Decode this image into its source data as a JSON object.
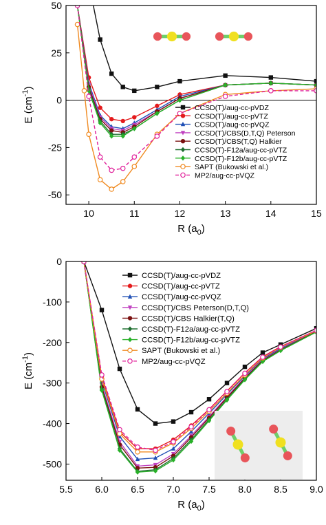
{
  "colors": {
    "background": "#ffffff",
    "axis": "#000000",
    "molecule_green": "#6fcf6a",
    "molecule_red": "#e8555a",
    "molecule_yellow": "#f0e020"
  },
  "chart_data": [
    {
      "type": "line",
      "xlabel": "R (a0)",
      "ylabel": "E (cm-1)",
      "xlim": [
        9.5,
        15
      ],
      "ylim": [
        -55,
        50
      ],
      "xticks": [
        "10",
        "11",
        "12",
        "13",
        "14",
        "15"
      ],
      "yticks": [
        "-50",
        "-25",
        "0",
        "25",
        "50"
      ],
      "xtick_values": [
        10,
        11,
        12,
        13,
        14,
        15
      ],
      "ytick_values": [
        -50,
        -25,
        0,
        25,
        50
      ],
      "zero_line": true,
      "grid": false,
      "legend_position": "center-right",
      "inset": "two linear molecules, side-by-side, top-right",
      "series": [
        {
          "name": "CCSD(T)/aug-cc-pVDZ",
          "color": "#111111",
          "dash": false,
          "marker": "square",
          "x": [
            9.9,
            10.0,
            10.25,
            10.5,
            10.75,
            11.0,
            11.5,
            12.0,
            13.0,
            14.0,
            15.0
          ],
          "y": [
            80,
            62,
            32,
            14,
            7,
            5,
            7,
            10,
            13,
            12,
            10
          ]
        },
        {
          "name": "CCSD(T)/aug-cc-pVTZ",
          "color": "#e41a1c",
          "dash": false,
          "marker": "circle",
          "x": [
            9.75,
            10.0,
            10.25,
            10.5,
            10.75,
            11.0,
            11.5,
            12.0,
            13.0,
            14.0,
            15.0
          ],
          "y": [
            50,
            12,
            -4,
            -10,
            -11,
            -9,
            -3,
            3,
            8,
            9,
            8
          ]
        },
        {
          "name": "CCSD(T)/aug-cc-pVQZ",
          "color": "#1f4fb5",
          "dash": false,
          "marker": "triangle",
          "x": [
            9.75,
            10.0,
            10.25,
            10.5,
            10.75,
            11.0,
            11.5,
            12.0,
            13.0,
            14.0,
            15.0
          ],
          "y": [
            50,
            9,
            -8,
            -14,
            -15,
            -12,
            -5,
            2,
            8,
            9,
            8
          ]
        },
        {
          "name": "CCSD(T)/CBS(D,T,Q) Peterson",
          "color": "#c040c0",
          "dash": false,
          "marker": "triangle-down",
          "x": [
            9.75,
            10.0,
            10.25,
            10.5,
            10.75,
            11.0,
            11.5,
            12.0,
            13.0,
            14.0,
            15.0
          ],
          "y": [
            50,
            8,
            -9,
            -15,
            -16,
            -13,
            -6,
            1,
            8,
            9,
            8
          ]
        },
        {
          "name": "CCSD(T)/CBS(T,Q) Halkier",
          "color": "#7a1010",
          "dash": false,
          "marker": "circle",
          "x": [
            9.75,
            10.0,
            10.25,
            10.5,
            10.75,
            11.0,
            11.5,
            12.0,
            13.0,
            14.0,
            15.0
          ],
          "y": [
            50,
            7,
            -10,
            -16,
            -17,
            -14,
            -6,
            1,
            8,
            9,
            8
          ]
        },
        {
          "name": "CCSD(T)-F12a/aug-cc-pVTZ",
          "color": "#1f6f30",
          "dash": false,
          "marker": "diamond",
          "x": [
            9.75,
            10.0,
            10.25,
            10.5,
            10.75,
            11.0,
            11.5,
            12.0,
            13.0,
            14.0,
            15.0
          ],
          "y": [
            50,
            6,
            -11,
            -18,
            -18,
            -15,
            -7,
            0,
            8,
            9,
            8
          ]
        },
        {
          "name": "CCSD(T)-F12b/aug-cc-pVTZ",
          "color": "#28b028",
          "dash": false,
          "marker": "diamond",
          "x": [
            9.75,
            10.0,
            10.25,
            10.5,
            10.75,
            11.0,
            11.5,
            12.0,
            13.0,
            14.0,
            15.0
          ],
          "y": [
            50,
            5,
            -12,
            -19,
            -19,
            -15,
            -7,
            0,
            8,
            9,
            8
          ]
        },
        {
          "name": "SAPT (Bukowski et al.)",
          "color": "#f08a20",
          "dash": false,
          "marker": "open-circle",
          "x": [
            9.75,
            9.9,
            10.0,
            10.25,
            10.5,
            10.75,
            11.0,
            11.5,
            12.0,
            13.0,
            14.0,
            15.0
          ],
          "y": [
            40,
            5,
            -18,
            -42,
            -47,
            -43,
            -35,
            -18,
            -7,
            3,
            5,
            6
          ]
        },
        {
          "name": "MP2/aug-cc-pVQZ",
          "color": "#e0209a",
          "dash": true,
          "marker": "open-circle",
          "x": [
            9.75,
            10.0,
            10.25,
            10.5,
            10.75,
            11.0,
            11.5,
            12.0,
            13.0,
            14.0,
            15.0
          ],
          "y": [
            50,
            2,
            -30,
            -37,
            -36,
            -30,
            -19,
            -7,
            2,
            5,
            5
          ]
        }
      ]
    },
    {
      "type": "line",
      "xlabel": "R (a0)",
      "ylabel": "E (cm-1)",
      "xlim": [
        5.5,
        9.0
      ],
      "ylim": [
        -540,
        0
      ],
      "xticks": [
        "5.5",
        "6.0",
        "6.5",
        "7.0",
        "7.5",
        "8.0",
        "8.5",
        "9.0"
      ],
      "yticks": [
        "0",
        "-100",
        "-200",
        "-300",
        "-400",
        "-500"
      ],
      "xtick_values": [
        5.5,
        6.0,
        6.5,
        7.0,
        7.5,
        8.0,
        8.5,
        9.0
      ],
      "ytick_values": [
        0,
        -100,
        -200,
        -300,
        -400,
        -500
      ],
      "grid": false,
      "legend_position": "top-right",
      "inset": "two tilted linear molecules, bottom-right",
      "series": [
        {
          "name": "CCSD(T)/aug-cc-pVDZ",
          "color": "#111111",
          "dash": false,
          "marker": "square",
          "x": [
            5.75,
            6.0,
            6.25,
            6.5,
            6.75,
            7.0,
            7.25,
            7.5,
            7.75,
            8.0,
            8.25,
            8.5,
            9.0
          ],
          "y": [
            0,
            -120,
            -265,
            -365,
            -400,
            -395,
            -372,
            -340,
            -300,
            -260,
            -225,
            -205,
            -165
          ]
        },
        {
          "name": "CCSD(T)/aug-cc-pVTZ",
          "color": "#e41a1c",
          "dash": false,
          "marker": "circle",
          "x": [
            5.75,
            6.0,
            6.25,
            6.5,
            6.75,
            7.0,
            7.25,
            7.5,
            7.75,
            8.0,
            8.25,
            8.5,
            9.0
          ],
          "y": [
            0,
            -285,
            -420,
            -462,
            -462,
            -440,
            -405,
            -365,
            -320,
            -275,
            -235,
            -210,
            -170
          ]
        },
        {
          "name": "CCSD(T)/aug-cc-pVQZ",
          "color": "#1f4fb5",
          "dash": false,
          "marker": "triangle",
          "x": [
            5.75,
            6.0,
            6.25,
            6.5,
            6.75,
            7.0,
            7.25,
            7.5,
            7.75,
            8.0,
            8.25,
            8.5,
            9.0
          ],
          "y": [
            0,
            -295,
            -432,
            -488,
            -485,
            -462,
            -420,
            -375,
            -328,
            -282,
            -240,
            -215,
            -172
          ]
        },
        {
          "name": "CCSD(T)/CBS Peterson(D,T,Q)",
          "color": "#c040c0",
          "dash": false,
          "marker": "triangle-down",
          "x": [
            5.75,
            6.0,
            6.25,
            6.5,
            6.75,
            7.0,
            7.25,
            7.5,
            7.75,
            8.0,
            8.25,
            8.5,
            9.0
          ],
          "y": [
            0,
            -305,
            -445,
            -505,
            -502,
            -475,
            -430,
            -383,
            -334,
            -286,
            -243,
            -217,
            -173
          ]
        },
        {
          "name": "CCSD(T)/CBS Halkier(T,Q)",
          "color": "#7a1010",
          "dash": false,
          "marker": "circle",
          "x": [
            5.75,
            6.0,
            6.25,
            6.5,
            6.75,
            7.0,
            7.25,
            7.5,
            7.75,
            8.0,
            8.25,
            8.5,
            9.0
          ],
          "y": [
            0,
            -310,
            -452,
            -510,
            -508,
            -480,
            -434,
            -386,
            -336,
            -288,
            -244,
            -218,
            -173
          ]
        },
        {
          "name": "CCSD(T)-F12a/aug-cc-pVTZ",
          "color": "#1f6f30",
          "dash": false,
          "marker": "diamond",
          "x": [
            5.75,
            6.0,
            6.25,
            6.5,
            6.75,
            7.0,
            7.25,
            7.5,
            7.75,
            8.0,
            8.25,
            8.5,
            9.0
          ],
          "y": [
            0,
            -315,
            -462,
            -518,
            -514,
            -486,
            -440,
            -390,
            -340,
            -290,
            -246,
            -219,
            -174
          ]
        },
        {
          "name": "CCSD(T)-F12b/aug-cc-pVTZ",
          "color": "#28b028",
          "dash": false,
          "marker": "diamond",
          "x": [
            5.75,
            6.0,
            6.25,
            6.5,
            6.75,
            7.0,
            7.25,
            7.5,
            7.75,
            8.0,
            8.25,
            8.5,
            9.0
          ],
          "y": [
            0,
            -318,
            -466,
            -520,
            -517,
            -490,
            -444,
            -393,
            -342,
            -292,
            -247,
            -220,
            -174
          ]
        },
        {
          "name": "SAPT (Bukowski et al.)",
          "color": "#f08a20",
          "dash": false,
          "marker": "open-circle",
          "x": [
            5.75,
            6.0,
            6.25,
            6.5,
            6.75,
            7.0,
            7.25,
            7.5,
            7.75,
            8.0,
            8.25,
            8.5,
            9.0
          ],
          "y": [
            0,
            -290,
            -425,
            -470,
            -470,
            -448,
            -412,
            -370,
            -325,
            -280,
            -238,
            -212,
            -171
          ]
        },
        {
          "name": "MP2/aug-cc-pVQZ",
          "color": "#e0209a",
          "dash": true,
          "marker": "open-circle",
          "x": [
            5.75,
            6.0,
            6.25,
            6.5,
            6.75,
            7.0,
            7.25,
            7.5,
            7.75,
            8.0,
            8.25,
            8.5,
            9.0
          ],
          "y": [
            0,
            -280,
            -415,
            -458,
            -466,
            -445,
            -408,
            -366,
            -321,
            -276,
            -236,
            -211,
            -170
          ]
        }
      ]
    }
  ]
}
